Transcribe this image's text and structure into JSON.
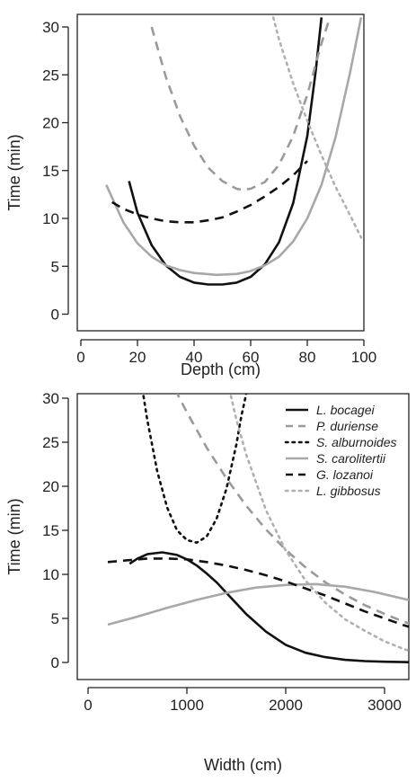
{
  "series_styles": [
    {
      "name": "L. bocagei",
      "color": "#111111",
      "dash": "solid",
      "width": 2.6
    },
    {
      "name": "P. duriense",
      "color": "#9a9a9a",
      "dash": "dashed",
      "width": 2.6
    },
    {
      "name": "S. alburnoides",
      "color": "#111111",
      "dash": "dotted",
      "width": 2.6
    },
    {
      "name": "S. carolitertii",
      "color": "#a8a8a8",
      "dash": "solid",
      "width": 2.6
    },
    {
      "name": "G. lozanoi",
      "color": "#111111",
      "dash": "dashed",
      "width": 2.6
    },
    {
      "name": "L. gibbosus",
      "color": "#b0b0b0",
      "dash": "dotted",
      "width": 2.6
    }
  ],
  "chart_data": [
    {
      "type": "line",
      "xlabel": "Depth (cm)",
      "ylabel": "Time (min)",
      "xlim": [
        0,
        100
      ],
      "ylim": [
        0,
        30
      ],
      "xticks": [
        "0",
        "20",
        "40",
        "60",
        "80",
        "100"
      ],
      "yticks": [
        "0",
        "5",
        "10",
        "15",
        "20",
        "25",
        "30"
      ],
      "grid": false,
      "series": [
        {
          "style": 0,
          "x": [
            17,
            20,
            25,
            30,
            35,
            40,
            45,
            48,
            50,
            55,
            60,
            65,
            70,
            75,
            80,
            83,
            85
          ],
          "y": [
            13.9,
            10.6,
            7.2,
            5.1,
            3.9,
            3.3,
            3.1,
            3.1,
            3.1,
            3.3,
            3.9,
            5.2,
            7.5,
            11.6,
            18.6,
            25.4,
            31
          ]
        },
        {
          "style": 1,
          "x": [
            25,
            30,
            35,
            40,
            45,
            50,
            55,
            57,
            60,
            65,
            70,
            75,
            80,
            85,
            88
          ],
          "y": [
            30,
            24.8,
            20.7,
            17.6,
            15.3,
            13.9,
            13.1,
            13,
            13.1,
            13.8,
            15.6,
            18.6,
            22.9,
            28.3,
            31
          ]
        },
        {
          "style": 3,
          "x": [
            9,
            15,
            20,
            25,
            30,
            35,
            40,
            48,
            55,
            60,
            65,
            70,
            75,
            80,
            85,
            90,
            95,
            99
          ],
          "y": [
            13.5,
            9.6,
            7.4,
            6,
            5.1,
            4.6,
            4.3,
            4.1,
            4.2,
            4.5,
            5.1,
            6,
            7.6,
            10,
            13.5,
            18.5,
            25.1,
            31
          ]
        },
        {
          "style": 4,
          "x": [
            11,
            15,
            20,
            25,
            30,
            35,
            40,
            45,
            50,
            55,
            60,
            65,
            70,
            75,
            80
          ],
          "y": [
            11.7,
            11,
            10.4,
            10,
            9.7,
            9.6,
            9.6,
            9.8,
            10.1,
            10.7,
            11.4,
            12.3,
            13.3,
            14.5,
            16
          ]
        },
        {
          "style": 5,
          "x": [
            68,
            70,
            75,
            80,
            85,
            90,
            95,
            99
          ],
          "y": [
            31,
            28.7,
            24.1,
            20.2,
            16.6,
            13.3,
            10.4,
            8
          ]
        }
      ]
    },
    {
      "type": "line",
      "xlabel": "Width (cm)",
      "ylabel": "Time (min)",
      "xlim": [
        0,
        3500
      ],
      "ylim": [
        0,
        30
      ],
      "xticks": [
        "0",
        "1000",
        "2000",
        "3000"
      ],
      "yticks": [
        "0",
        "5",
        "10",
        "15",
        "20",
        "25",
        "30"
      ],
      "grid": false,
      "legend": "top-right",
      "legend_entries": [
        "L. bocagei",
        "P. duriense",
        "S. alburnoides",
        "S. carolitertii",
        "G. lozanoi",
        "L. gibbosus"
      ],
      "series": [
        {
          "style": 0,
          "x": [
            420,
            500,
            600,
            750,
            900,
            1000,
            1100,
            1200,
            1300,
            1400,
            1500,
            1600,
            1800,
            2000,
            2200,
            2400,
            2600,
            2800,
            3000,
            3200,
            3500
          ],
          "y": [
            11.2,
            11.8,
            12.3,
            12.5,
            12.2,
            11.7,
            11,
            10.1,
            9.1,
            7.9,
            6.7,
            5.5,
            3.5,
            2,
            1.1,
            0.6,
            0.3,
            0.15,
            0.08,
            0.04,
            0
          ]
        },
        {
          "style": 1,
          "x": [
            880,
            1000,
            1200,
            1400,
            1600,
            1800,
            2000,
            2200,
            2400,
            2600,
            2800,
            3000,
            3200,
            3500
          ],
          "y": [
            31,
            28.4,
            24.4,
            20.9,
            17.8,
            15.1,
            12.8,
            10.8,
            9.1,
            7.7,
            6.5,
            5.5,
            4.6,
            3.6
          ]
        },
        {
          "style": 2,
          "x": [
            550,
            600,
            700,
            800,
            900,
            1000,
            1100,
            1200,
            1300,
            1400,
            1500,
            1550,
            1610
          ],
          "y": [
            31,
            27.5,
            21.7,
            17.6,
            15,
            13.9,
            13.6,
            14.3,
            16.3,
            19.7,
            24.7,
            27.9,
            31
          ]
        },
        {
          "style": 3,
          "x": [
            200,
            500,
            800,
            1100,
            1400,
            1700,
            2000,
            2300,
            2600,
            2900,
            3200,
            3500
          ],
          "y": [
            4.3,
            5.2,
            6.2,
            7.1,
            7.9,
            8.5,
            8.8,
            8.9,
            8.6,
            8,
            7.2,
            6.4
          ]
        },
        {
          "style": 4,
          "x": [
            200,
            400,
            600,
            800,
            1000,
            1200,
            1400,
            1600,
            1800,
            2000,
            2200,
            2400,
            2600,
            2800,
            3000,
            3200,
            3500
          ],
          "y": [
            11.4,
            11.6,
            11.8,
            11.8,
            11.7,
            11.4,
            11,
            10.5,
            9.9,
            9.2,
            8.4,
            7.6,
            6.7,
            5.8,
            5,
            4.2,
            3.2
          ]
        },
        {
          "style": 5,
          "x": [
            1430,
            1500,
            1600,
            1800,
            2000,
            2200,
            2400,
            2600,
            2800,
            3000,
            3200,
            3500
          ],
          "y": [
            31,
            27.6,
            23.6,
            17.3,
            12.7,
            9.3,
            6.8,
            4.9,
            3.6,
            2.4,
            1.5,
            0.6
          ]
        }
      ]
    }
  ]
}
